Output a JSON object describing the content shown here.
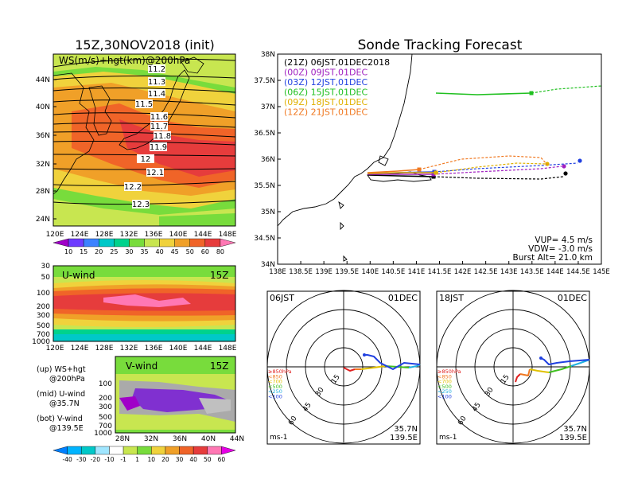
{
  "left_panel": {
    "title": "15Z,30NOV2018 (init)",
    "map_label": "WS(m/s)+hgt(km)@200hPa",
    "lat_ticks": [
      "44N",
      "40N",
      "36N",
      "32N",
      "28N",
      "24N"
    ],
    "lon_ticks": [
      "120E",
      "124E",
      "128E",
      "132E",
      "136E",
      "140E",
      "144E",
      "148E"
    ],
    "contour_labels": [
      "11.2",
      "11.3",
      "11.4",
      "11.5",
      "11.6",
      "11.7",
      "11.8",
      "11.9",
      "12",
      "12.1",
      "12.2",
      "12.3"
    ],
    "ws_colorbar": [
      "10",
      "15",
      "20",
      "25",
      "30",
      "35",
      "40",
      "45",
      "50",
      "60",
      "80"
    ],
    "ws_colors": [
      "#a000c8",
      "#6e3cff",
      "#3c82ff",
      "#00c8c8",
      "#00d28c",
      "#78dc3c",
      "#c8e650",
      "#f0d23c",
      "#f0a028",
      "#f06428",
      "#e63c3c",
      "#ff78b4"
    ]
  },
  "uwind_panel": {
    "title": "U-wind",
    "time": "15Z",
    "p_ticks": [
      "30",
      "50",
      "100",
      "200",
      "300",
      "500",
      "700",
      "1000"
    ],
    "lon_ticks": [
      "120E",
      "124E",
      "128E",
      "132E",
      "136E",
      "140E",
      "144E",
      "148E"
    ]
  },
  "vwind_panel": {
    "title": "V-wind",
    "time": "15Z",
    "p_ticks": [
      "100",
      "200",
      "300",
      "500",
      "700",
      "1000"
    ],
    "lat_ticks": [
      "28N",
      "32N",
      "36N",
      "40N",
      "44N"
    ],
    "colorbar": [
      "-40",
      "-30",
      "-20",
      "-10",
      "-1",
      "1",
      "10",
      "20",
      "30",
      "40",
      "50",
      "60"
    ]
  },
  "legend_notes": [
    {
      "line1": "(up) WS+hgt",
      "line2": "@200hPa"
    },
    {
      "line1": "(mid) U-wind",
      "line2": "@35.7N"
    },
    {
      "line1": "(bot) V-wind",
      "line2": "@139.5E"
    }
  ],
  "forecast": {
    "title": "Sonde Tracking Forecast",
    "lat_ticks": [
      "38N",
      "37.5N",
      "37N",
      "36.5N",
      "36N",
      "35.5N",
      "35N",
      "34.5N",
      "34N"
    ],
    "lon_ticks": [
      "138E",
      "138.5E",
      "139E",
      "139.5E",
      "140E",
      "140.5E",
      "141E",
      "141.5E",
      "142E",
      "142.5E",
      "143E",
      "143.5E",
      "144E",
      "144.5E",
      "145E"
    ],
    "launches": [
      {
        "label": "(21Z)  06JST,01DEC2018",
        "color": "#000000"
      },
      {
        "label": "(00Z)  09JST,01DEC",
        "color": "#a020c0"
      },
      {
        "label": "(03Z)  12JST,01DEC",
        "color": "#2040e0"
      },
      {
        "label": "(06Z)  15JST,01DEC",
        "color": "#20c020"
      },
      {
        "label": "(09Z)  18JST,01DEC",
        "color": "#e0b000"
      },
      {
        "label": "(12Z)  21JST,01DEC",
        "color": "#f07820"
      }
    ],
    "vup": "VUP=  4.5 m/s",
    "vdw": "VDW= -3.0 m/s",
    "burst": "Burst Alt= 21.0 km"
  },
  "hodo_left": {
    "time": "06JST",
    "date": "01DEC",
    "lat": "35.7N",
    "lon": "139.5E",
    "unit": "ms-1",
    "rings": [
      "15",
      "30",
      "45",
      "60"
    ],
    "levels": [
      {
        "label": "≥850hPa",
        "color": "#e02020"
      },
      {
        "label": "<850",
        "color": "#f07820"
      },
      {
        "label": "<700",
        "color": "#e0c000"
      },
      {
        "label": "<500",
        "color": "#40c020"
      },
      {
        "label": "<250",
        "color": "#20b0e0"
      },
      {
        "label": "<100",
        "color": "#2040e0"
      }
    ]
  },
  "hodo_right": {
    "time": "18JST",
    "date": "01DEC",
    "lat": "35.7N",
    "lon": "139.5E",
    "unit": "ms-1",
    "rings": [
      "15",
      "30",
      "45",
      "60"
    ],
    "levels": [
      {
        "label": "≥850hPa",
        "color": "#e02020"
      },
      {
        "label": "<850",
        "color": "#f07820"
      },
      {
        "label": "<700",
        "color": "#e0c000"
      },
      {
        "label": "<500",
        "color": "#40c020"
      },
      {
        "label": "<250",
        "color": "#20b0e0"
      },
      {
        "label": "<100",
        "color": "#2040e0"
      }
    ]
  }
}
